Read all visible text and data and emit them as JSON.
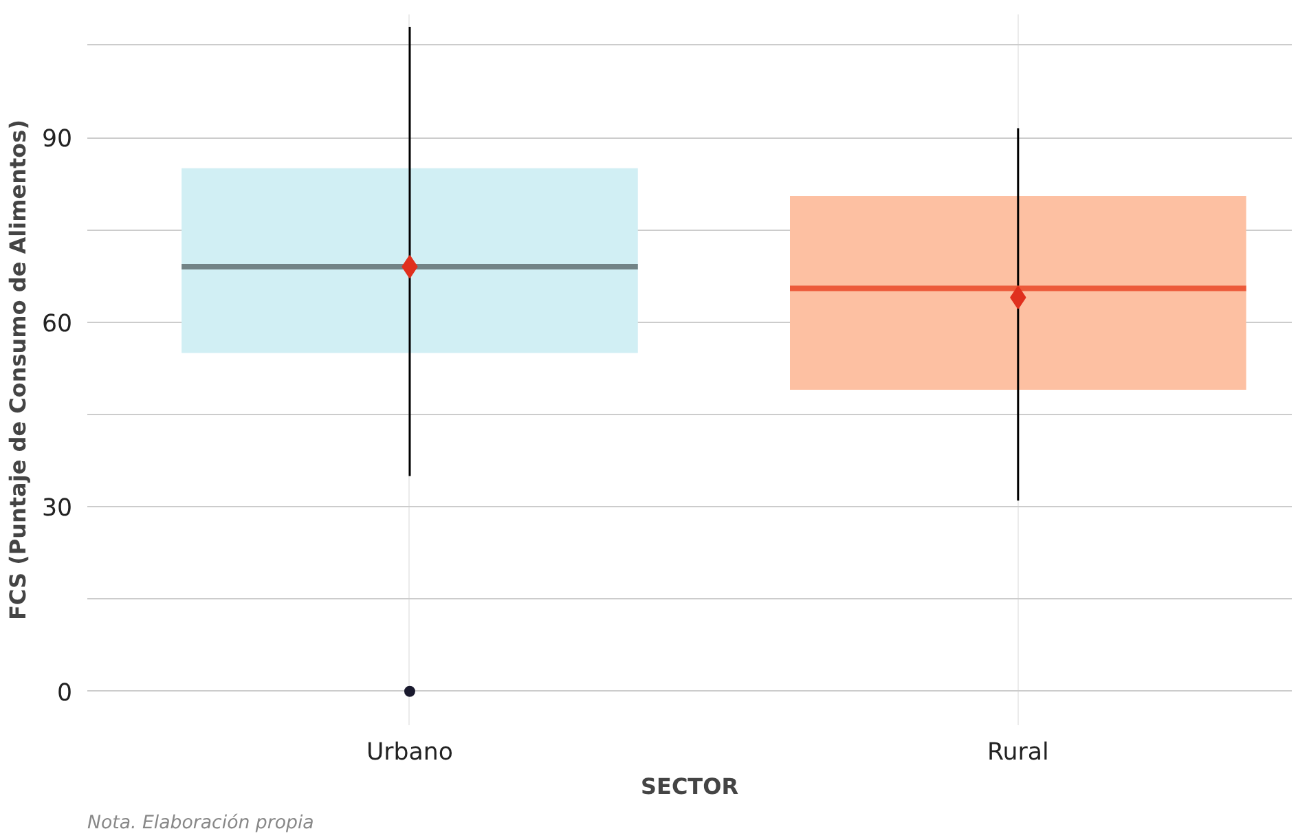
{
  "chart_data": {
    "type": "box",
    "xlabel": "SECTOR",
    "ylabel": "FCS (Puntaje de Consumo de Alimentos)",
    "categories": [
      "Urbano",
      "Rural"
    ],
    "boxes": [
      {
        "low": 35,
        "q1": 55,
        "median": 69,
        "q3": 85,
        "high": 108,
        "mean": 69,
        "outliers": [
          0
        ]
      },
      {
        "low": 31,
        "q1": 49,
        "median": 65.5,
        "q3": 80.5,
        "high": 91.5,
        "mean": 64
      }
    ],
    "colors": [
      "#d1eff4",
      "#fdc0a2"
    ],
    "ylim": [
      -5.5,
      110
    ],
    "yticks": [
      0,
      {
        "value": 15,
        "label": null
      },
      30,
      {
        "value": 45,
        "label": null
      },
      60,
      {
        "value": 75,
        "label": null
      },
      90,
      {
        "value": 105,
        "label": null
      }
    ],
    "grid": true,
    "annotations": [
      "Nota. Elaboración propia"
    ]
  }
}
